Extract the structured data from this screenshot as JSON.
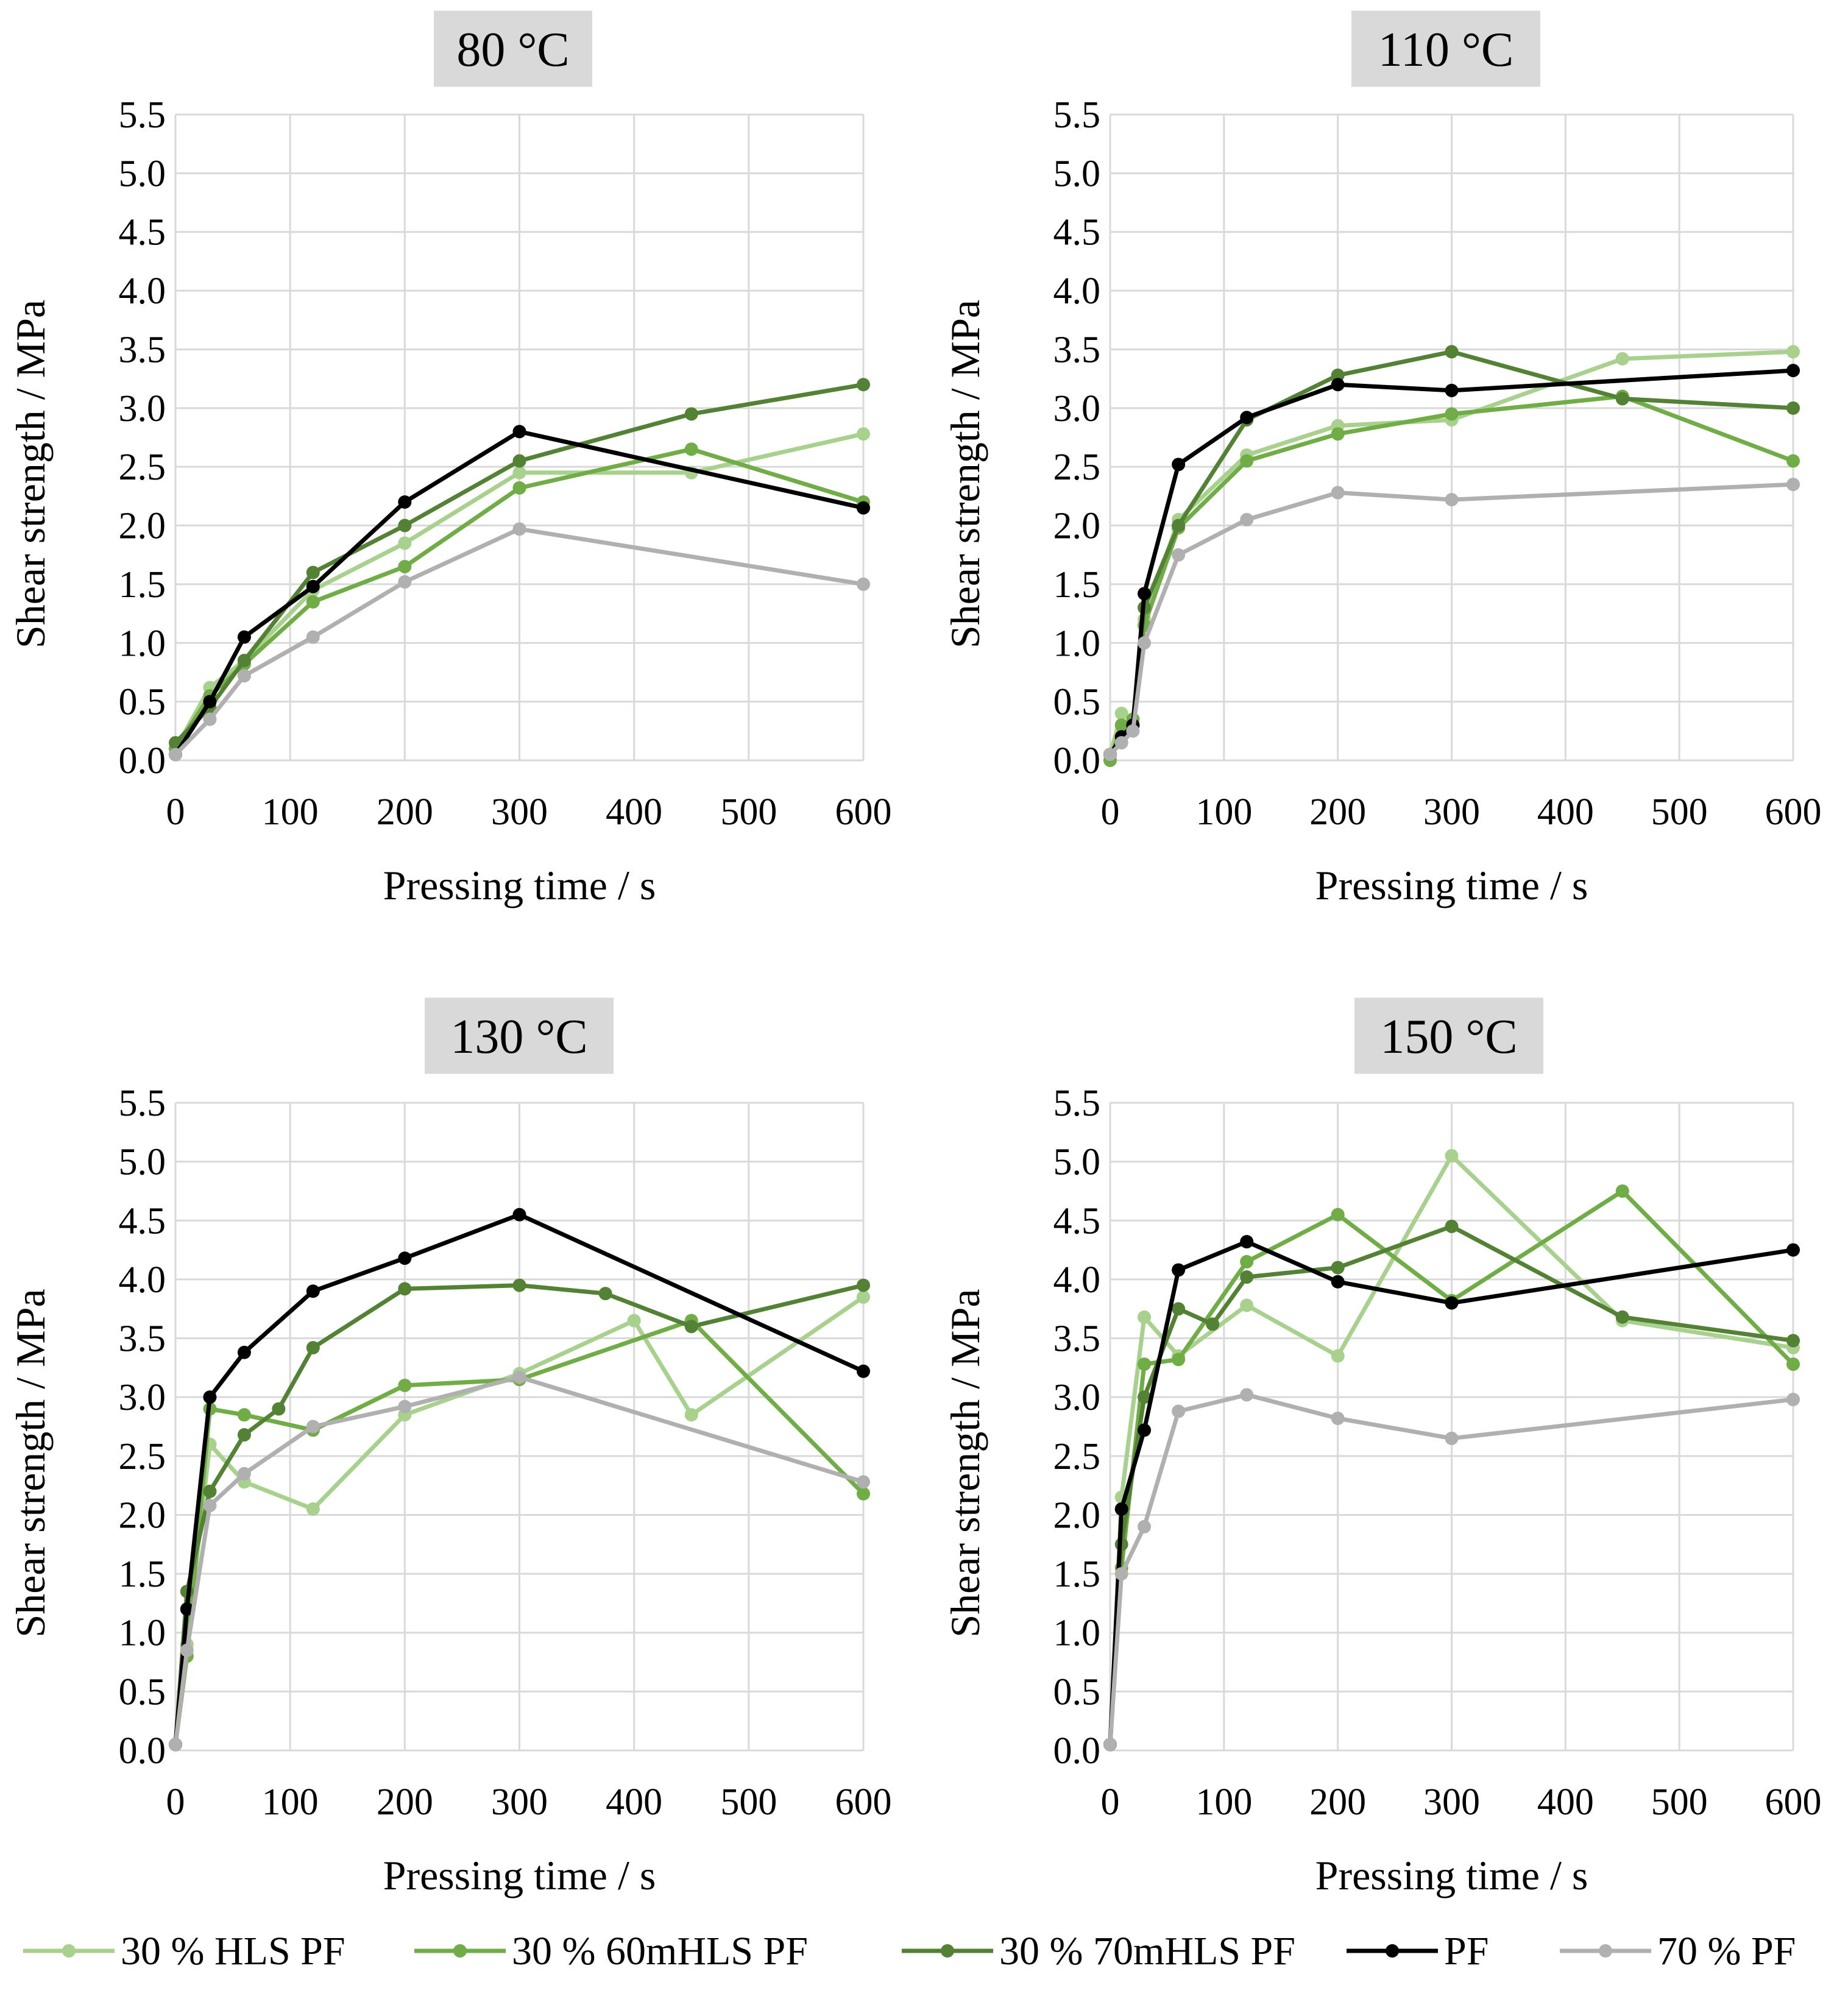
{
  "colors": {
    "30 % HLS PF": "#a9d18e",
    "30 % 60mHLS PF": "#70ad47",
    "30 % 70mHLS PF": "#548235",
    "PF": "#000000",
    "70 % PF": "#b0b0b0"
  },
  "legend": [
    "30 % HLS PF",
    "30 % 60mHLS PF",
    "30 % 70mHLS PF",
    "PF",
    "70 % PF"
  ],
  "chart_data": [
    {
      "type": "line",
      "title": "80 °C",
      "xlabel": "Pressing time / s",
      "ylabel": "Shear strength / MPa",
      "xlim": [
        0,
        600
      ],
      "ylim": [
        0,
        5.5
      ],
      "xticks": [
        "0",
        "100",
        "200",
        "300",
        "400",
        "500",
        "600"
      ],
      "yticks": [
        "0.0",
        "0.5",
        "1.0",
        "1.5",
        "2.0",
        "2.5",
        "3.0",
        "3.5",
        "4.0",
        "4.5",
        "5.0",
        "5.5"
      ],
      "series": [
        {
          "name": "30 % HLS PF",
          "x": [
            0,
            30,
            60,
            120,
            200,
            300,
            450,
            600
          ],
          "y": [
            0.1,
            0.62,
            0.85,
            1.45,
            1.85,
            2.45,
            2.45,
            2.78
          ]
        },
        {
          "name": "30 % 60mHLS PF",
          "x": [
            0,
            30,
            60,
            120,
            200,
            300,
            450,
            600
          ],
          "y": [
            0.1,
            0.55,
            0.82,
            1.35,
            1.65,
            2.32,
            2.65,
            2.2
          ]
        },
        {
          "name": "30 % 70mHLS PF",
          "x": [
            0,
            30,
            60,
            120,
            200,
            300,
            450,
            600
          ],
          "y": [
            0.15,
            0.45,
            0.85,
            1.6,
            2.0,
            2.55,
            2.95,
            3.2
          ]
        },
        {
          "name": "PF",
          "x": [
            0,
            30,
            60,
            120,
            200,
            300,
            600
          ],
          "y": [
            0.05,
            0.5,
            1.05,
            1.48,
            2.2,
            2.8,
            2.15
          ]
        },
        {
          "name": "70 % PF",
          "x": [
            0,
            30,
            60,
            120,
            200,
            300,
            600
          ],
          "y": [
            0.05,
            0.35,
            0.72,
            1.05,
            1.52,
            1.97,
            1.5
          ]
        }
      ]
    },
    {
      "type": "line",
      "title": "110 °C",
      "xlabel": "Pressing time / s",
      "ylabel": "Shear strength / MPa",
      "xlim": [
        0,
        600
      ],
      "ylim": [
        0,
        5.5
      ],
      "xticks": [
        "0",
        "100",
        "200",
        "300",
        "400",
        "500",
        "600"
      ],
      "yticks": [
        "0.0",
        "0.5",
        "1.0",
        "1.5",
        "2.0",
        "2.5",
        "3.0",
        "3.5",
        "4.0",
        "4.5",
        "5.0",
        "5.5"
      ],
      "series": [
        {
          "name": "30 % HLS PF",
          "x": [
            0,
            10,
            20,
            30,
            60,
            120,
            200,
            300,
            450,
            600
          ],
          "y": [
            0.05,
            0.4,
            0.35,
            1.2,
            2.05,
            2.6,
            2.85,
            2.9,
            3.42,
            3.48
          ]
        },
        {
          "name": "30 % 60mHLS PF",
          "x": [
            0,
            10,
            20,
            30,
            60,
            120,
            200,
            300,
            450,
            600
          ],
          "y": [
            0.0,
            0.3,
            0.35,
            1.15,
            1.98,
            2.55,
            2.78,
            2.95,
            3.1,
            2.55
          ]
        },
        {
          "name": "30 % 70mHLS PF",
          "x": [
            0,
            10,
            20,
            30,
            60,
            120,
            200,
            300,
            450,
            600
          ],
          "y": [
            0.05,
            0.2,
            0.3,
            1.3,
            2.0,
            2.9,
            3.28,
            3.48,
            3.08,
            3.0
          ]
        },
        {
          "name": "PF",
          "x": [
            0,
            10,
            20,
            30,
            60,
            120,
            200,
            300,
            600
          ],
          "y": [
            0.05,
            0.2,
            0.3,
            1.42,
            2.52,
            2.92,
            3.2,
            3.15,
            3.32
          ]
        },
        {
          "name": "70 % PF",
          "x": [
            0,
            10,
            20,
            30,
            60,
            120,
            200,
            300,
            600
          ],
          "y": [
            0.05,
            0.15,
            0.25,
            1.0,
            1.75,
            2.05,
            2.28,
            2.22,
            2.35
          ]
        }
      ]
    },
    {
      "type": "line",
      "title": "130 °C",
      "xlabel": "Pressing time / s",
      "ylabel": "Shear strength / MPa",
      "xlim": [
        0,
        600
      ],
      "ylim": [
        0,
        5.5
      ],
      "xticks": [
        "0",
        "100",
        "200",
        "300",
        "400",
        "500",
        "600"
      ],
      "yticks": [
        "0.0",
        "0.5",
        "1.0",
        "1.5",
        "2.0",
        "2.5",
        "3.0",
        "3.5",
        "4.0",
        "4.5",
        "5.0",
        "5.5"
      ],
      "series": [
        {
          "name": "30 % HLS PF",
          "x": [
            0,
            10,
            30,
            60,
            120,
            200,
            300,
            400,
            450,
            600
          ],
          "y": [
            0.05,
            0.9,
            2.6,
            2.28,
            2.05,
            2.85,
            3.2,
            3.65,
            2.85,
            3.85
          ]
        },
        {
          "name": "30 % 60mHLS PF",
          "x": [
            0,
            10,
            30,
            60,
            120,
            200,
            300,
            450,
            600
          ],
          "y": [
            0.05,
            0.8,
            2.9,
            2.85,
            2.72,
            3.1,
            3.15,
            3.65,
            2.18
          ]
        },
        {
          "name": "30 % 70mHLS PF",
          "x": [
            0,
            10,
            30,
            60,
            90,
            120,
            200,
            300,
            375,
            450,
            600
          ],
          "y": [
            0.05,
            1.35,
            2.2,
            2.68,
            2.9,
            3.42,
            3.92,
            3.95,
            3.88,
            3.6,
            3.95
          ]
        },
        {
          "name": "PF",
          "x": [
            0,
            10,
            30,
            60,
            120,
            200,
            300,
            600
          ],
          "y": [
            0.05,
            1.2,
            3.0,
            3.38,
            3.9,
            4.18,
            4.55,
            3.22
          ]
        },
        {
          "name": "70 % PF",
          "x": [
            0,
            10,
            30,
            60,
            120,
            200,
            300,
            600
          ],
          "y": [
            0.05,
            0.85,
            2.08,
            2.35,
            2.75,
            2.92,
            3.17,
            2.28
          ]
        }
      ]
    },
    {
      "type": "line",
      "title": "150 °C",
      "xlabel": "Pressing time / s",
      "ylabel": "Shear strength / MPa",
      "xlim": [
        0,
        600
      ],
      "ylim": [
        0,
        5.5
      ],
      "xticks": [
        "0",
        "100",
        "200",
        "300",
        "400",
        "500",
        "600"
      ],
      "yticks": [
        "0.0",
        "0.5",
        "1.0",
        "1.5",
        "2.0",
        "2.5",
        "3.0",
        "3.5",
        "4.0",
        "4.5",
        "5.0",
        "5.5"
      ],
      "series": [
        {
          "name": "30 % HLS PF",
          "x": [
            0,
            10,
            30,
            60,
            120,
            200,
            300,
            450,
            600
          ],
          "y": [
            0.05,
            2.15,
            3.68,
            3.35,
            3.78,
            3.35,
            5.05,
            3.65,
            3.42
          ]
        },
        {
          "name": "30 % 60mHLS PF",
          "x": [
            0,
            10,
            30,
            60,
            120,
            200,
            300,
            450,
            600
          ],
          "y": [
            0.05,
            1.55,
            3.28,
            3.32,
            4.15,
            4.55,
            3.82,
            4.75,
            3.28
          ]
        },
        {
          "name": "30 % 70mHLS PF",
          "x": [
            0,
            10,
            30,
            60,
            90,
            120,
            200,
            300,
            450,
            600
          ],
          "y": [
            0.05,
            1.75,
            3.0,
            3.75,
            3.62,
            4.02,
            4.1,
            4.45,
            3.68,
            3.48
          ]
        },
        {
          "name": "PF",
          "x": [
            0,
            10,
            30,
            60,
            120,
            200,
            300,
            600
          ],
          "y": [
            0.05,
            2.05,
            2.72,
            4.08,
            4.32,
            3.98,
            3.8,
            4.25
          ]
        },
        {
          "name": "70 % PF",
          "x": [
            0,
            10,
            30,
            60,
            120,
            200,
            300,
            600
          ],
          "y": [
            0.05,
            1.5,
            1.9,
            2.88,
            3.02,
            2.82,
            2.65,
            2.98
          ]
        }
      ]
    }
  ]
}
